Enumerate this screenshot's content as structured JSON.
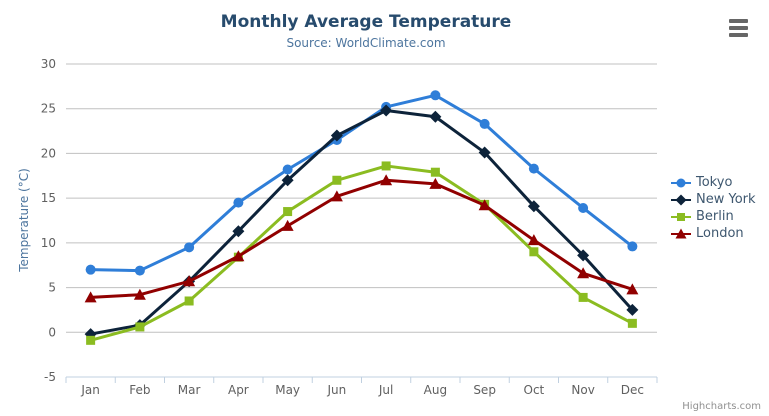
{
  "title": "Monthly Average Temperature",
  "subtitle": "Source: WorldClimate.com",
  "credits": "Highcharts.com",
  "colors": {
    "title": "#274b6d",
    "subtitle": "#4d759e",
    "axis_title": "#4d759e",
    "axis_labels": "#606060",
    "gridline": "#C0C0C0",
    "axis_line": "#C0D0E0",
    "legend_text": "#3E576F",
    "credits_text": "#909090",
    "menu_icon": "#666666"
  },
  "icons": {
    "export_menu": "hamburger-icon"
  },
  "chart_data": {
    "type": "line",
    "title": "Monthly Average Temperature",
    "subtitle": "Source: WorldClimate.com",
    "categories": [
      "Jan",
      "Feb",
      "Mar",
      "Apr",
      "May",
      "Jun",
      "Jul",
      "Aug",
      "Sep",
      "Oct",
      "Nov",
      "Dec"
    ],
    "xlabel": "",
    "ylabel": "Temperature (°C)",
    "ylim": [
      -5,
      30
    ],
    "yticks": [
      30,
      25,
      20,
      15,
      10,
      5,
      0,
      -5
    ],
    "grid": true,
    "legend_position": "right",
    "series": [
      {
        "name": "Tokyo",
        "color": "#2f7ed8",
        "marker": "circle",
        "values": [
          7.0,
          6.9,
          9.5,
          14.5,
          18.2,
          21.5,
          25.2,
          26.5,
          23.3,
          18.3,
          13.9,
          9.6
        ]
      },
      {
        "name": "New York",
        "color": "#0d233a",
        "marker": "diamond",
        "values": [
          -0.2,
          0.8,
          5.7,
          11.3,
          17.0,
          22.0,
          24.8,
          24.1,
          20.1,
          14.1,
          8.6,
          2.5
        ]
      },
      {
        "name": "Berlin",
        "color": "#8bbc21",
        "marker": "square",
        "values": [
          -0.9,
          0.6,
          3.5,
          8.4,
          13.5,
          17.0,
          18.6,
          17.9,
          14.3,
          9.0,
          3.9,
          1.0
        ]
      },
      {
        "name": "London",
        "color": "#910000",
        "marker": "triangle",
        "values": [
          3.9,
          4.2,
          5.7,
          8.5,
          11.9,
          15.2,
          17.0,
          16.6,
          14.2,
          10.3,
          6.6,
          4.8
        ]
      }
    ]
  }
}
